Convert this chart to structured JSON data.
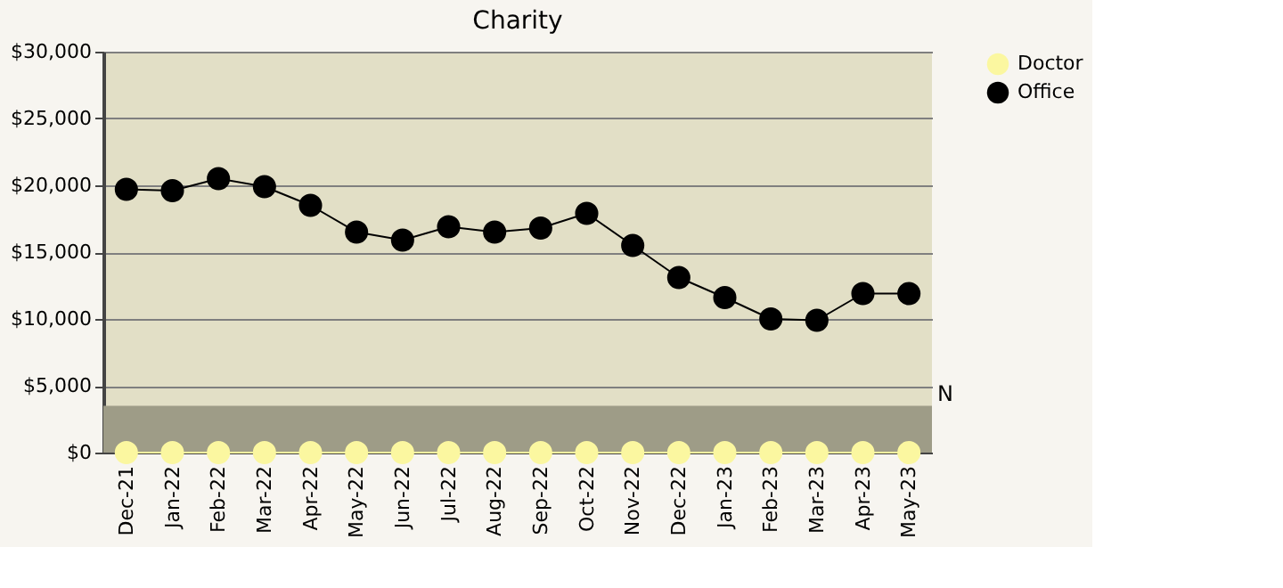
{
  "chart_data": {
    "type": "line",
    "title": "Charity",
    "categories": [
      "Dec-21",
      "Jan-22",
      "Feb-22",
      "Mar-22",
      "Apr-22",
      "May-22",
      "Jun-22",
      "Jul-22",
      "Aug-22",
      "Sep-22",
      "Oct-22",
      "Nov-22",
      "Dec-22",
      "Jan-23",
      "Feb-23",
      "Mar-23",
      "Apr-23",
      "May-23"
    ],
    "series": [
      {
        "name": "Doctor",
        "color": "#fbf7a0",
        "values": [
          0,
          0,
          0,
          0,
          0,
          0,
          0,
          0,
          0,
          0,
          0,
          0,
          0,
          0,
          0,
          0,
          0,
          0
        ]
      },
      {
        "name": "Office",
        "color": "#000000",
        "values": [
          19700,
          19600,
          20500,
          19900,
          18500,
          16500,
          15900,
          16900,
          16500,
          16800,
          17900,
          15500,
          13100,
          11600,
          10000,
          9900,
          11900,
          11900
        ]
      }
    ],
    "ylim": [
      0,
      30000
    ],
    "yticks": [
      {
        "value": 0,
        "label": "$0"
      },
      {
        "value": 5000,
        "label": "$5,000"
      },
      {
        "value": 10000,
        "label": "$10,000"
      },
      {
        "value": 15000,
        "label": "$15,000"
      },
      {
        "value": 20000,
        "label": "$20,000"
      },
      {
        "value": 25000,
        "label": "$25,000"
      },
      {
        "value": 30000,
        "label": "$30,000"
      }
    ],
    "bands": [
      {
        "axis": "y",
        "from": 0,
        "to": 3500,
        "label": "N",
        "color": "#9e9c87"
      }
    ],
    "grid": "y",
    "legend": "right",
    "marker": "circle",
    "line_style": "solid"
  }
}
